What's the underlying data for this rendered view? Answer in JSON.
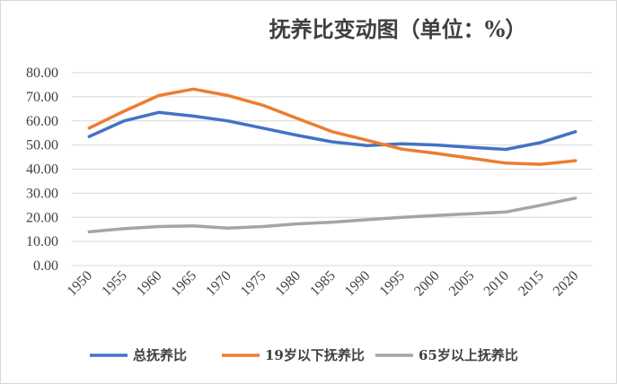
{
  "chart_data": {
    "type": "line",
    "title": "抚养比变动图（单位：%）",
    "xlabel": "",
    "ylabel": "",
    "categories": [
      "1950",
      "1955",
      "1960",
      "1965",
      "1970",
      "1975",
      "1980",
      "1985",
      "1990",
      "1995",
      "2000",
      "2005",
      "2010",
      "2015",
      "2020"
    ],
    "ylim": [
      0,
      80
    ],
    "yticks": [
      "0.00",
      "10.00",
      "20.00",
      "30.00",
      "40.00",
      "50.00",
      "60.00",
      "70.00",
      "80.00"
    ],
    "grid": "horizontal",
    "legend_position": "bottom",
    "series": [
      {
        "name": "总抚养比",
        "color": "#4472C4",
        "values": [
          53.5,
          60.0,
          63.5,
          62.0,
          60.0,
          57.0,
          54.0,
          51.3,
          49.8,
          50.5,
          50.0,
          49.0,
          48.2,
          51.0,
          55.5
        ]
      },
      {
        "name": "19岁以下抚养比",
        "color": "#ED7D31",
        "values": [
          57.0,
          64.0,
          70.5,
          73.2,
          70.5,
          66.5,
          61.0,
          55.5,
          52.0,
          48.3,
          46.5,
          44.5,
          42.5,
          42.0,
          43.5
        ]
      },
      {
        "name": "65岁以上抚养比",
        "color": "#A5A5A5",
        "values": [
          14.0,
          15.3,
          16.2,
          16.5,
          15.5,
          16.2,
          17.3,
          18.0,
          19.0,
          20.0,
          20.8,
          21.5,
          22.2,
          25.0,
          28.0
        ]
      }
    ]
  }
}
